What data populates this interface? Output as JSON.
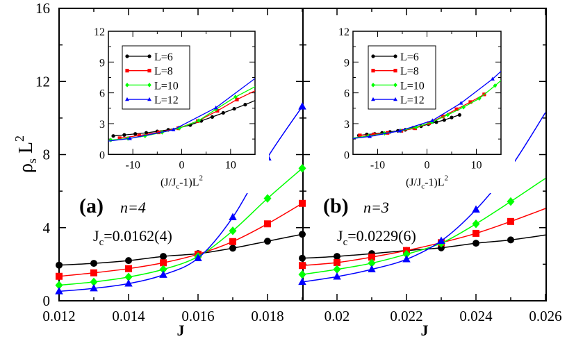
{
  "chart_data": [
    {
      "type": "line",
      "panel": "(a)",
      "annotation_n": "n=4",
      "annotation_jc": "J",
      "annotation_jc_sub": "c",
      "annotation_jc_value": "=0.0162(4)",
      "xlabel": "J",
      "ylabel": "ρ",
      "ylabel_sub": "s",
      "ylabel_tail": " L",
      "ylabel_sup": "2",
      "xlim": [
        0.012,
        0.019
      ],
      "ylim": [
        0,
        16
      ],
      "xticks": [
        "0.012",
        "0.014",
        "0.016",
        "0.018"
      ],
      "yticks": [
        "0",
        "4",
        "8",
        "12",
        "16"
      ],
      "x": [
        0.012,
        0.013,
        0.014,
        0.015,
        0.016,
        0.017,
        0.018,
        0.019
      ],
      "series": [
        {
          "name": "L=6",
          "color": "#000000",
          "marker": "circle",
          "values": [
            1.95,
            2.05,
            2.2,
            2.43,
            2.58,
            2.88,
            3.26,
            3.64
          ]
        },
        {
          "name": "L=8",
          "color": "#ff0000",
          "marker": "square",
          "values": [
            1.34,
            1.53,
            1.76,
            2.08,
            2.55,
            3.24,
            4.21,
            5.33
          ]
        },
        {
          "name": "L=10",
          "color": "#00ff00",
          "marker": "diamond",
          "values": [
            0.85,
            1.03,
            1.3,
            1.72,
            2.42,
            3.83,
            5.6,
            7.25
          ]
        },
        {
          "name": "L=12",
          "color": "#0000ff",
          "marker": "triangle",
          "values": [
            0.52,
            0.68,
            0.94,
            1.42,
            2.33,
            4.57,
            7.84,
            10.63
          ]
        }
      ],
      "inset": {
        "xlabel": "(J/J",
        "xlabel_sub": "c",
        "xlabel_tail": "-1)L",
        "xlabel_sup": "2",
        "xlim": [
          -15,
          15
        ],
        "ylim": [
          0,
          12
        ],
        "xticks": [
          "-10",
          "0",
          "10"
        ],
        "yticks": [
          "0",
          "3",
          "6",
          "9",
          "12"
        ],
        "legend_position": "upper-left",
        "series": [
          {
            "name": "L=6",
            "color": "#000000",
            "marker": "circle",
            "x": [
              -14,
              -11.75,
              -9.5,
              -7.25,
              -5,
              -2.75,
              -0.5,
              1.75,
              4,
              6.25,
              8.5,
              10.75,
              13
            ],
            "y": [
              1.8,
              1.9,
              2.0,
              2.1,
              2.25,
              2.4,
              2.6,
              2.86,
              3.27,
              3.65,
              4.05,
              4.45,
              4.85
            ],
            "line_end": [
              15,
              5.25
            ]
          },
          {
            "name": "L=8",
            "color": "#ff0000",
            "marker": "square",
            "x": [
              -12.7,
              -8.7,
              -4.7,
              -0.7,
              3.3,
              7.3,
              11.3
            ],
            "y": [
              1.58,
              1.85,
              2.15,
              2.55,
              3.25,
              4.25,
              5.35
            ],
            "line_end": [
              15,
              6.2
            ]
          },
          {
            "name": "L=10",
            "color": "#00ff00",
            "marker": "diamond",
            "x": [
              -14.5,
              -11,
              -7.5,
              -4,
              -0.5,
              3.5,
              7,
              11
            ],
            "y": [
              1.4,
              1.55,
              1.8,
              2.15,
              2.55,
              3.3,
              4.4,
              5.6
            ],
            "line_end": [
              15,
              6.6
            ]
          },
          {
            "name": "L=12",
            "color": "#0000ff",
            "marker": "triangle",
            "x": [
              -10.6,
              -1.7,
              7.0
            ],
            "y": [
              1.55,
              2.4,
              4.55
            ],
            "line_start": [
              -15,
              1.3
            ],
            "line_end": [
              15,
              7.4
            ]
          }
        ]
      }
    },
    {
      "type": "line",
      "panel": "(b)",
      "annotation_n": "n=3",
      "annotation_jc": "J",
      "annotation_jc_sub": "c",
      "annotation_jc_value": "=0.0229(6)",
      "xlabel": "J",
      "xlim": [
        0.019,
        0.026
      ],
      "ylim": [
        0,
        16
      ],
      "xticks": [
        "0.02",
        "0.022",
        "0.024",
        "0.026"
      ],
      "x": [
        0.019,
        0.02,
        0.021,
        0.022,
        0.023,
        0.024,
        0.025
      ],
      "series": [
        {
          "name": "L=6",
          "color": "#000000",
          "marker": "circle",
          "values": [
            2.33,
            2.43,
            2.58,
            2.75,
            2.9,
            3.15,
            3.33
          ],
          "fit_at_0.026": 3.6
        },
        {
          "name": "L=8",
          "color": "#ff0000",
          "marker": "square",
          "values": [
            1.93,
            2.09,
            2.39,
            2.75,
            3.18,
            3.69,
            4.34
          ],
          "fit_at_0.026": 5.05
        },
        {
          "name": "L=10",
          "color": "#00ff00",
          "marker": "diamond",
          "values": [
            1.44,
            1.72,
            2.06,
            2.55,
            3.15,
            4.21,
            5.43
          ],
          "fit_at_0.026": 6.7
        },
        {
          "name": "L=12",
          "color": "#0000ff",
          "marker": "triangle",
          "values": [
            1.03,
            1.32,
            1.72,
            2.27,
            3.28,
            4.99,
            7.31
          ],
          "fit_at_0.026": 10.3
        }
      ],
      "inset": {
        "xlabel": "(J/J",
        "xlabel_sub": "c",
        "xlabel_tail": "-1)L",
        "xlabel_sup": "2",
        "xlim": [
          -15,
          15
        ],
        "ylim": [
          0,
          12
        ],
        "xticks": [
          "-10",
          "0",
          "10"
        ],
        "yticks": [
          "0",
          "3",
          "6",
          "9",
          "12"
        ],
        "legend_position": "upper-left",
        "series": [
          {
            "name": "L=6",
            "color": "#000000",
            "marker": "circle",
            "x": [
              -13.8,
              -12.2,
              -10.6,
              -9.1,
              -7.5,
              -5.9,
              -4.4,
              -2.8,
              -1.2,
              0.3,
              1.9,
              3.5,
              5.0,
              6.6
            ],
            "y": [
              1.85,
              1.95,
              2.0,
              2.1,
              2.2,
              2.3,
              2.4,
              2.6,
              2.75,
              2.95,
              3.15,
              3.35,
              3.6,
              3.85
            ]
          },
          {
            "name": "L=8",
            "color": "#ff0000",
            "marker": "square",
            "x": [
              -13.6,
              -10.8,
              -8,
              -5.2,
              -2.4,
              0.4,
              3.2,
              6.0,
              8.8,
              11.6
            ],
            "y": [
              1.85,
              1.95,
              2.1,
              2.3,
              2.55,
              3.05,
              3.7,
              4.4,
              5.1,
              5.85
            ]
          },
          {
            "name": "L=10",
            "color": "#00ff00",
            "marker": "diamond",
            "x": [
              -11.8,
              -8.6,
              -5.4,
              -2.2,
              1.0,
              4.2,
              7.4,
              10.6,
              13.8
            ],
            "y": [
              1.8,
              2.05,
              2.3,
              2.65,
              3.15,
              3.85,
              4.6,
              5.45,
              6.7
            ],
            "line_start": [
              -15,
              1.6
            ],
            "line_end": [
              15,
              7.2
            ]
          },
          {
            "name": "L=12",
            "color": "#0000ff",
            "marker": "triangle",
            "x": [
              -11.6,
              -5.5,
              1.1,
              6.9,
              13.3
            ],
            "y": [
              1.75,
              2.3,
              3.3,
              5.0,
              7.35
            ],
            "line_start": [
              -15,
              1.55
            ],
            "line_end": [
              15,
              8.1
            ]
          }
        ]
      }
    }
  ]
}
